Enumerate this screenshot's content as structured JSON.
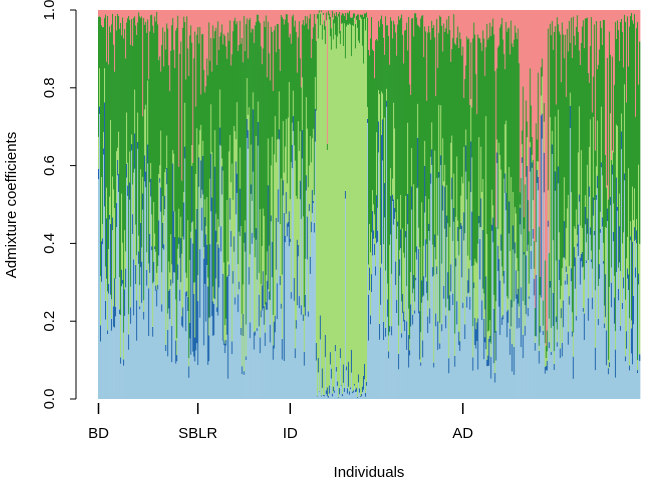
{
  "chart_data": {
    "type": "bar",
    "subtype": "stacked-admixture",
    "title": "",
    "xlabel": "Individuals",
    "ylabel": "Admixture coefficients",
    "ylim": [
      0,
      1
    ],
    "y_ticks": [
      "0.0",
      "0.2",
      "0.4",
      "0.6",
      "0.8",
      "1.0"
    ],
    "grid": false,
    "legend": "none",
    "n_individuals": 540,
    "groups": [
      {
        "label": "BD",
        "start_index": 0
      },
      {
        "label": "SBLR",
        "start_index": 99
      },
      {
        "label": "ID",
        "start_index": 191
      },
      {
        "label": "AD",
        "start_index": 363
      }
    ],
    "components": [
      {
        "color": "#9ECAE1"
      },
      {
        "color": "#2166AC"
      },
      {
        "color": "#A6DD76"
      },
      {
        "color": "#2E9A2E"
      },
      {
        "color": "#F48A8A"
      }
    ],
    "segments": [
      {
        "start": 0,
        "end": 8,
        "mean": [
          0.45,
          0.04,
          0.08,
          0.4,
          0.03
        ]
      },
      {
        "start": 8,
        "end": 60,
        "mean": [
          0.35,
          0.04,
          0.1,
          0.47,
          0.04
        ]
      },
      {
        "start": 60,
        "end": 92,
        "mean": [
          0.3,
          0.06,
          0.1,
          0.45,
          0.09
        ]
      },
      {
        "start": 92,
        "end": 118,
        "mean": [
          0.22,
          0.18,
          0.08,
          0.4,
          0.12
        ]
      },
      {
        "start": 118,
        "end": 175,
        "mean": [
          0.3,
          0.05,
          0.12,
          0.47,
          0.06
        ]
      },
      {
        "start": 175,
        "end": 218,
        "mean": [
          0.35,
          0.04,
          0.22,
          0.35,
          0.04
        ]
      },
      {
        "start": 218,
        "end": 268,
        "mean": [
          0.02,
          0.01,
          0.93,
          0.03,
          0.01
        ]
      },
      {
        "start": 268,
        "end": 355,
        "mean": [
          0.27,
          0.04,
          0.12,
          0.52,
          0.05
        ]
      },
      {
        "start": 355,
        "end": 420,
        "mean": [
          0.28,
          0.05,
          0.12,
          0.45,
          0.1
        ]
      },
      {
        "start": 420,
        "end": 430,
        "mean": [
          0.3,
          0.05,
          0.05,
          0.1,
          0.5
        ]
      },
      {
        "start": 430,
        "end": 448,
        "mean": [
          0.3,
          0.04,
          0.04,
          0.12,
          0.5
        ]
      },
      {
        "start": 448,
        "end": 505,
        "mean": [
          0.3,
          0.04,
          0.13,
          0.45,
          0.08
        ]
      },
      {
        "start": 505,
        "end": 515,
        "mean": [
          0.3,
          0.04,
          0.1,
          0.34,
          0.22
        ]
      },
      {
        "start": 515,
        "end": 540,
        "mean": [
          0.3,
          0.04,
          0.14,
          0.47,
          0.05
        ]
      }
    ]
  }
}
